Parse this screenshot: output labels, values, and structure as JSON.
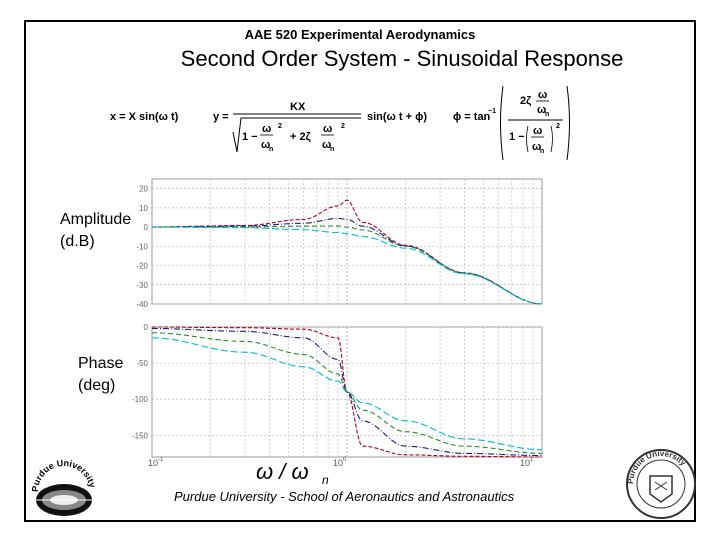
{
  "header": {
    "course": "AAE 520 Experimental Aerodynamics",
    "title": "Second Order System - Sinusoidal Response"
  },
  "labels": {
    "amplitude_line1": "Amplitude",
    "amplitude_line2": "(d.B)",
    "phase_line1": "Phase",
    "phase_line2": "(deg)"
  },
  "equations": {
    "input": "x = X sin(ω t)",
    "output_lhs": "y =",
    "output_num": "KX",
    "output_sin": "sin(ω t + ϕ)",
    "phase_lhs": "ϕ = tan",
    "phase_exp": "−1",
    "two_zeta": "2ζ",
    "omega": "ω",
    "omega_n": "ω",
    "sub_n": "n",
    "one_minus": "1 −",
    "plus_two_zeta": "+ 2ζ",
    "sq": "2"
  },
  "x_axis": {
    "label_omega": "ω / ω",
    "label_sub": "n",
    "tick_left": "10",
    "tick_mid": "10",
    "tick_right": "10",
    "exp_left": "-1",
    "exp_mid": "0",
    "exp_right": "1"
  },
  "footer": "Purdue University - School of Aeronautics and Astronautics",
  "logos": {
    "left_text": "Purdue University",
    "right_text": "Purdue University"
  },
  "colors": {
    "series_colors": [
      "#b00020",
      "#1c1c80",
      "#2e8b2e",
      "#00bcd4"
    ]
  },
  "chart_data": [
    {
      "type": "line",
      "title": "",
      "xlabel": "ω / ωn",
      "ylabel": "Amplitude (d.B)",
      "xscale": "log",
      "xlim": [
        0.1,
        10
      ],
      "ylim": [
        -40,
        25
      ],
      "y_ticks": [
        "20",
        "10",
        "0",
        "-10",
        "-20",
        "-30",
        "-40"
      ],
      "grid": true,
      "x": [
        0.1,
        0.3,
        0.6,
        0.9,
        1.0,
        1.2,
        2,
        4,
        10
      ],
      "series": [
        {
          "values": [
            0.1,
            0.8,
            4.0,
            11.0,
            14.0,
            2.5,
            -9.5,
            -23.8,
            -40.0
          ]
        },
        {
          "values": [
            0.0,
            0.5,
            2.0,
            4.5,
            4.0,
            0.5,
            -9.8,
            -23.9,
            -40.0
          ]
        },
        {
          "values": [
            0.0,
            0.1,
            0.5,
            0.6,
            0.0,
            -1.5,
            -10.0,
            -24.0,
            -40.0
          ]
        },
        {
          "values": [
            0.0,
            -0.3,
            -1.4,
            -2.8,
            -3.5,
            -4.9,
            -11.0,
            -24.3,
            -40.0
          ]
        }
      ]
    },
    {
      "type": "line",
      "title": "",
      "xlabel": "ω / ωn",
      "ylabel": "Phase (deg)",
      "xscale": "log",
      "xlim": [
        0.1,
        10
      ],
      "ylim": [
        -180,
        0
      ],
      "y_ticks": [
        "0",
        "-50",
        "-100",
        "-150"
      ],
      "grid": true,
      "x": [
        0.1,
        0.3,
        0.6,
        0.9,
        1.0,
        1.2,
        2,
        4,
        10
      ],
      "series": [
        {
          "values": [
            0,
            -1,
            -3,
            -15,
            -90,
            -165,
            -177,
            -179,
            -180
          ]
        },
        {
          "values": [
            -2,
            -6,
            -15,
            -45,
            -90,
            -130,
            -165,
            -175,
            -178
          ]
        },
        {
          "values": [
            -8,
            -20,
            -38,
            -65,
            -90,
            -115,
            -145,
            -165,
            -175
          ]
        },
        {
          "values": [
            -15,
            -35,
            -55,
            -75,
            -90,
            -105,
            -130,
            -155,
            -170
          ]
        }
      ]
    }
  ]
}
